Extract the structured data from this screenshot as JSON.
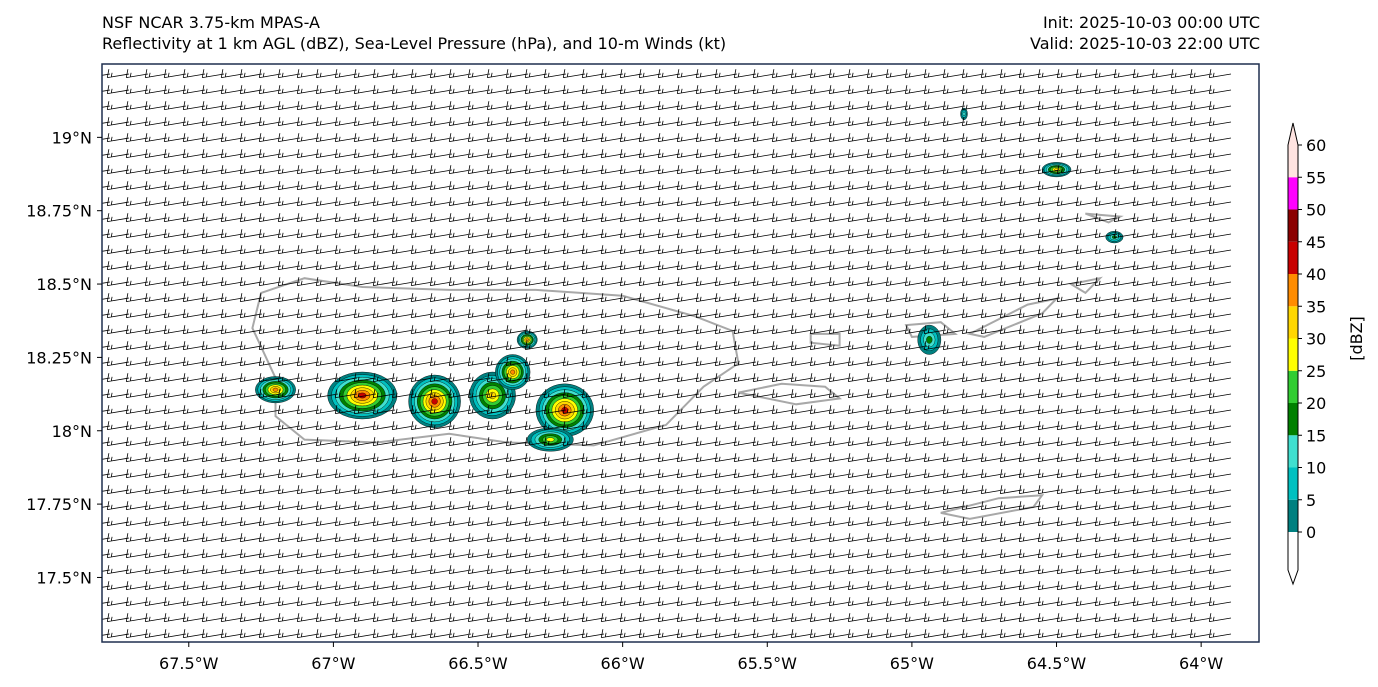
{
  "header": {
    "title_line1": "NSF NCAR 3.75-km MPAS-A",
    "title_line2": "Reflectivity at 1 km AGL (dBZ), Sea-Level Pressure (hPa), and 10-m Winds (kt)",
    "init": "Init: 2025-10-03 00:00 UTC",
    "valid": "Valid: 2025-10-03 22:00 UTC"
  },
  "map": {
    "lon_range": [
      -67.8,
      -63.8
    ],
    "lat_range": [
      17.28,
      19.25
    ],
    "lon_ticks": [
      -67.5,
      -67.0,
      -66.5,
      -66.0,
      -65.5,
      -65.0,
      -64.5,
      -64.0
    ],
    "lon_tick_labels": [
      "67.5°W",
      "67°W",
      "66.5°W",
      "66°W",
      "65.5°W",
      "65°W",
      "64.5°W",
      "64°W"
    ],
    "lat_ticks": [
      19.0,
      18.75,
      18.5,
      18.25,
      18.0,
      17.75,
      17.5
    ],
    "lat_tick_labels": [
      "19°N",
      "18.75°N",
      "18.5°N",
      "18.25°N",
      "18°N",
      "17.75°N",
      "17.5°N"
    ],
    "islands": [
      {
        "name": "puerto-rico",
        "points": [
          [
            -67.25,
            18.47
          ],
          [
            -67.1,
            18.52
          ],
          [
            -66.9,
            18.49
          ],
          [
            -66.6,
            18.48
          ],
          [
            -66.3,
            18.48
          ],
          [
            -66.0,
            18.46
          ],
          [
            -65.75,
            18.39
          ],
          [
            -65.62,
            18.34
          ],
          [
            -65.6,
            18.23
          ],
          [
            -65.72,
            18.15
          ],
          [
            -65.85,
            18.02
          ],
          [
            -66.1,
            17.95
          ],
          [
            -66.4,
            17.96
          ],
          [
            -66.6,
            17.99
          ],
          [
            -66.85,
            17.96
          ],
          [
            -67.1,
            17.97
          ],
          [
            -67.2,
            18.05
          ],
          [
            -67.2,
            18.18
          ],
          [
            -67.28,
            18.35
          ],
          [
            -67.25,
            18.47
          ]
        ]
      },
      {
        "name": "vieques",
        "points": [
          [
            -65.6,
            18.13
          ],
          [
            -65.45,
            18.16
          ],
          [
            -65.3,
            18.15
          ],
          [
            -65.25,
            18.11
          ],
          [
            -65.4,
            18.09
          ],
          [
            -65.6,
            18.13
          ]
        ]
      },
      {
        "name": "culebra",
        "points": [
          [
            -65.35,
            18.33
          ],
          [
            -65.25,
            18.33
          ],
          [
            -65.25,
            18.29
          ],
          [
            -65.35,
            18.3
          ],
          [
            -65.35,
            18.33
          ]
        ]
      },
      {
        "name": "st-thomas",
        "points": [
          [
            -65.02,
            18.36
          ],
          [
            -64.9,
            18.37
          ],
          [
            -64.85,
            18.33
          ],
          [
            -65.0,
            18.32
          ],
          [
            -65.02,
            18.36
          ]
        ]
      },
      {
        "name": "st-john-tortola",
        "points": [
          [
            -64.8,
            18.33
          ],
          [
            -64.6,
            18.43
          ],
          [
            -64.5,
            18.45
          ],
          [
            -64.55,
            18.4
          ],
          [
            -64.75,
            18.32
          ],
          [
            -64.8,
            18.33
          ]
        ]
      },
      {
        "name": "virgin-gorda",
        "points": [
          [
            -64.45,
            18.5
          ],
          [
            -64.35,
            18.52
          ],
          [
            -64.4,
            18.47
          ],
          [
            -64.45,
            18.5
          ]
        ]
      },
      {
        "name": "anegada",
        "points": [
          [
            -64.4,
            18.74
          ],
          [
            -64.28,
            18.73
          ],
          [
            -64.32,
            18.71
          ],
          [
            -64.4,
            18.74
          ]
        ]
      },
      {
        "name": "st-croix",
        "points": [
          [
            -64.9,
            17.72
          ],
          [
            -64.7,
            17.77
          ],
          [
            -64.55,
            17.78
          ],
          [
            -64.58,
            17.74
          ],
          [
            -64.8,
            17.7
          ],
          [
            -64.9,
            17.72
          ]
        ]
      }
    ],
    "echoes": [
      {
        "lon": -67.2,
        "lat": 18.14,
        "rx": 0.07,
        "ry": 0.045,
        "max": 35
      },
      {
        "lon": -66.9,
        "lat": 18.12,
        "rx": 0.12,
        "ry": 0.08,
        "max": 40
      },
      {
        "lon": -66.65,
        "lat": 18.1,
        "rx": 0.09,
        "ry": 0.09,
        "max": 40
      },
      {
        "lon": -66.45,
        "lat": 18.12,
        "rx": 0.08,
        "ry": 0.08,
        "max": 30
      },
      {
        "lon": -66.38,
        "lat": 18.2,
        "rx": 0.06,
        "ry": 0.06,
        "max": 35
      },
      {
        "lon": -66.33,
        "lat": 18.31,
        "rx": 0.035,
        "ry": 0.03,
        "max": 35
      },
      {
        "lon": -66.2,
        "lat": 18.07,
        "rx": 0.1,
        "ry": 0.09,
        "max": 40
      },
      {
        "lon": -66.25,
        "lat": 17.97,
        "rx": 0.08,
        "ry": 0.04,
        "max": 25
      },
      {
        "lon": -64.94,
        "lat": 18.31,
        "rx": 0.04,
        "ry": 0.05,
        "max": 15
      },
      {
        "lon": -64.5,
        "lat": 18.89,
        "rx": 0.05,
        "ry": 0.025,
        "max": 30
      },
      {
        "lon": -64.3,
        "lat": 18.66,
        "rx": 0.03,
        "ry": 0.02,
        "max": 15
      },
      {
        "lon": -64.82,
        "lat": 19.08,
        "rx": 0.012,
        "ry": 0.02,
        "max": 10
      }
    ],
    "wind_u_kt": 12,
    "wind_v_kt": 2
  },
  "colorbar": {
    "label": "[dBZ]",
    "levels": [
      0,
      5,
      10,
      15,
      20,
      25,
      30,
      35,
      40,
      45,
      50,
      55,
      60
    ],
    "tick_labels": [
      "0",
      "5",
      "10",
      "15",
      "20",
      "25",
      "30",
      "35",
      "40",
      "45",
      "50",
      "55",
      "60"
    ],
    "colors": [
      "#008080",
      "#00c0c0",
      "#40e0d0",
      "#008000",
      "#32cd32",
      "#ffff00",
      "#ffd700",
      "#ff8c00",
      "#c80000",
      "#8b0000",
      "#ff00ff",
      "#ffe4e1"
    ],
    "over_color": "#ffe4e1",
    "under_color": "#ffffff"
  }
}
